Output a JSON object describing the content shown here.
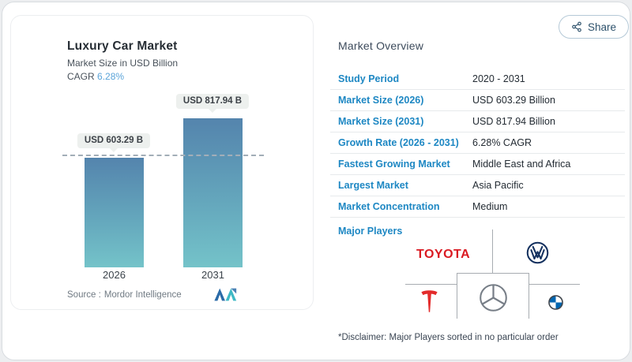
{
  "share": {
    "label": "Share"
  },
  "chart": {
    "title": "Luxury Car Market",
    "subtitle": "Market Size in USD Billion",
    "cagr_label": "CAGR",
    "cagr_value": "6.28%",
    "bar_labels": [
      "USD 603.29 B",
      "USD 817.94 B"
    ],
    "source_label": "Source :",
    "source_name": "Mordor Intelligence"
  },
  "chart_data": {
    "type": "bar",
    "title": "Luxury Car Market",
    "ylabel": "Market Size in USD Billion",
    "xlabel": "",
    "categories": [
      "2026",
      "2031"
    ],
    "values": [
      603.29,
      817.94
    ],
    "data_labels": [
      "USD 603.29 B",
      "USD 817.94 B"
    ],
    "reference_line": 603.29,
    "ylim": [
      0,
      900
    ],
    "grid": false,
    "legend": false,
    "bar_gradient": [
      "#5484ad",
      "#74c3c9"
    ]
  },
  "overview": {
    "heading": "Market Overview",
    "rows": [
      {
        "label": "Study Period",
        "value": "2020 - 2031"
      },
      {
        "label": "Market Size (2026)",
        "value": "USD 603.29 Billion"
      },
      {
        "label": "Market Size (2031)",
        "value": "USD 817.94 Billion"
      },
      {
        "label": "Growth Rate (2026 - 2031)",
        "value": "6.28% CAGR"
      },
      {
        "label": "Fastest Growing Market",
        "value": "Middle East and Africa"
      },
      {
        "label": "Largest Market",
        "value": "Asia Pacific"
      },
      {
        "label": "Market Concentration",
        "value": "Medium"
      }
    ],
    "major_players_label": "Major Players",
    "toyota_wordmark": "TOYOTA",
    "players": [
      "Toyota Motor Corporation",
      "Volkswagen",
      "Tesla",
      "Mercedes-Benz",
      "BMW"
    ],
    "disclaimer": "*Disclaimer: Major Players sorted in no particular order"
  },
  "colors": {
    "label_blue": "#1d87c3",
    "cagr_blue": "#5ba4d9",
    "toyota_red": "#da1a22",
    "tesla_red": "#e32b2b",
    "vw_navy": "#13305e",
    "bmw_blue": "#0066b1",
    "mercedes_gray": "#777e87",
    "mordor_blue": "#2b6ba8",
    "mordor_teal": "#3fb9c5"
  }
}
